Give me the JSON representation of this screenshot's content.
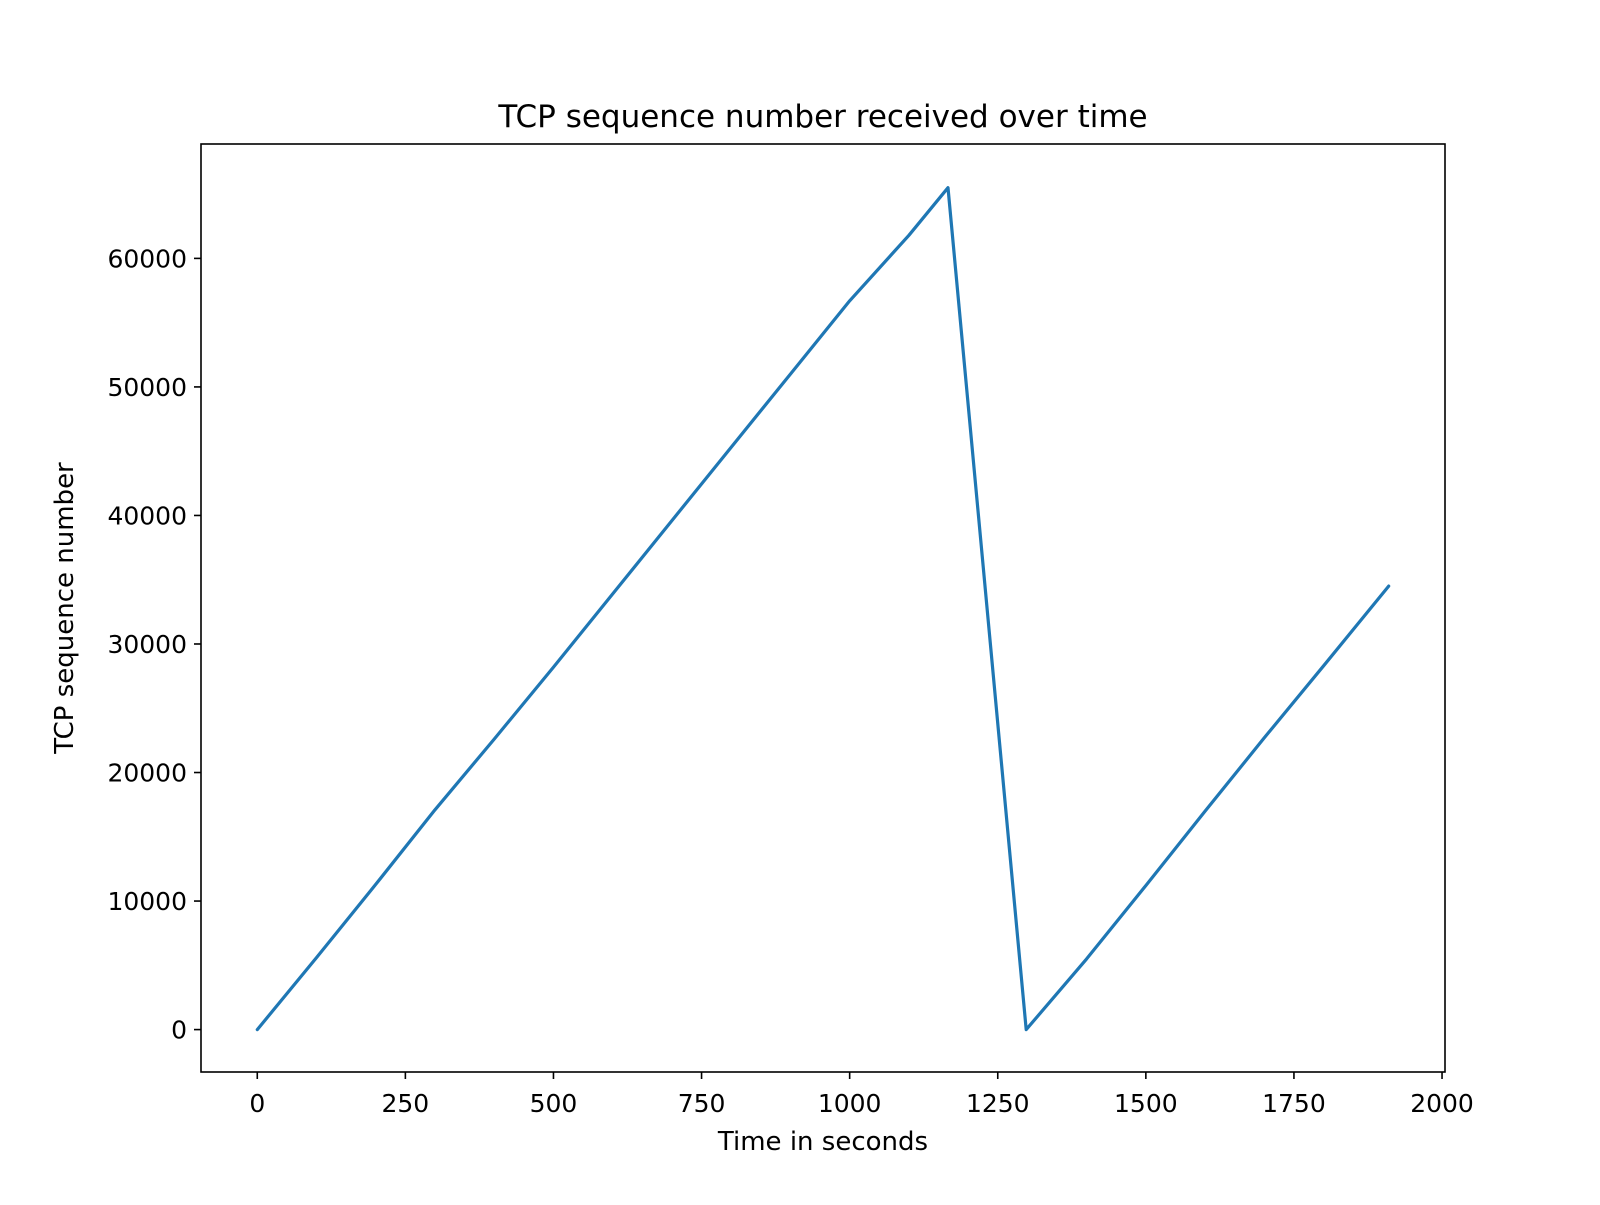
{
  "chart_data": {
    "type": "line",
    "title": "TCP sequence number received over time",
    "xlabel": "Time in seconds",
    "ylabel": "TCP sequence number",
    "xlim": [
      -95,
      2005
    ],
    "ylim": [
      -3300,
      68900
    ],
    "xticks": [
      0,
      250,
      500,
      750,
      1000,
      1250,
      1500,
      1750,
      2000
    ],
    "xtick_labels": [
      "0",
      "250",
      "500",
      "750",
      "1000",
      "1250",
      "1500",
      "1750",
      "2000"
    ],
    "yticks": [
      0,
      10000,
      20000,
      30000,
      40000,
      50000,
      60000
    ],
    "ytick_labels": [
      "0",
      "10000",
      "20000",
      "30000",
      "40000",
      "50000",
      "60000"
    ],
    "grid": false,
    "legend": "none",
    "series_color": "#1f77b4",
    "series": [
      {
        "x": [
          0,
          100,
          200,
          300,
          400,
          500,
          600,
          700,
          800,
          900,
          1000,
          1100,
          1166,
          1298,
          1400,
          1500,
          1600,
          1700,
          1800,
          1910
        ],
        "y": [
          0,
          5600,
          11300,
          17100,
          22600,
          28200,
          33900,
          39600,
          45300,
          51000,
          56700,
          61800,
          65500,
          0,
          5500,
          11200,
          17000,
          22700,
          28300,
          34500
        ]
      }
    ]
  }
}
